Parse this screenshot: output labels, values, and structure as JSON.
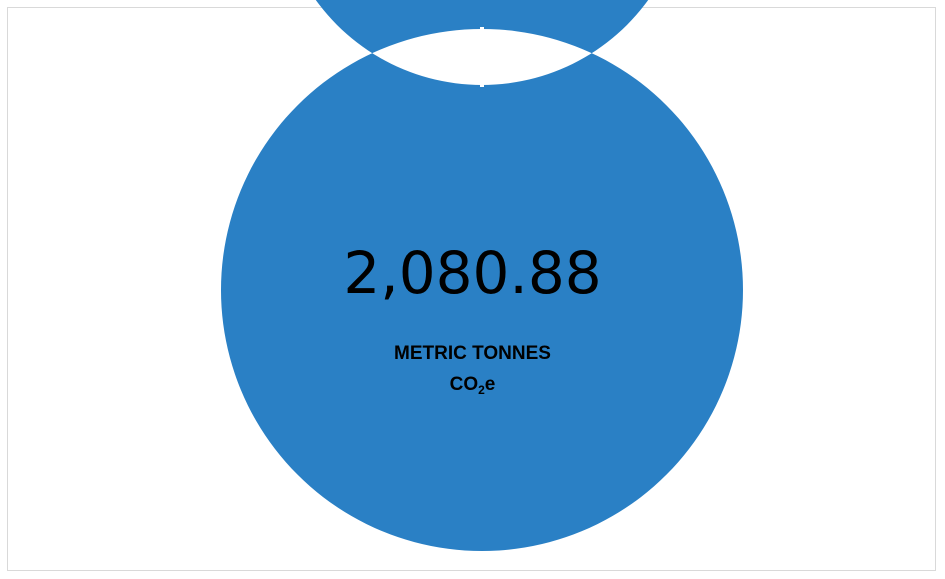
{
  "chart_data": {
    "type": "pie",
    "variant": "donut",
    "slices": [
      {
        "value": 2080.88,
        "color": "#2a80c5"
      }
    ],
    "center_value": "2,080.88",
    "center_unit": "METRIC TONNES",
    "center_gas_prefix": "CO",
    "center_gas_subscript": "2",
    "center_gas_suffix": "e",
    "legend": "none"
  }
}
